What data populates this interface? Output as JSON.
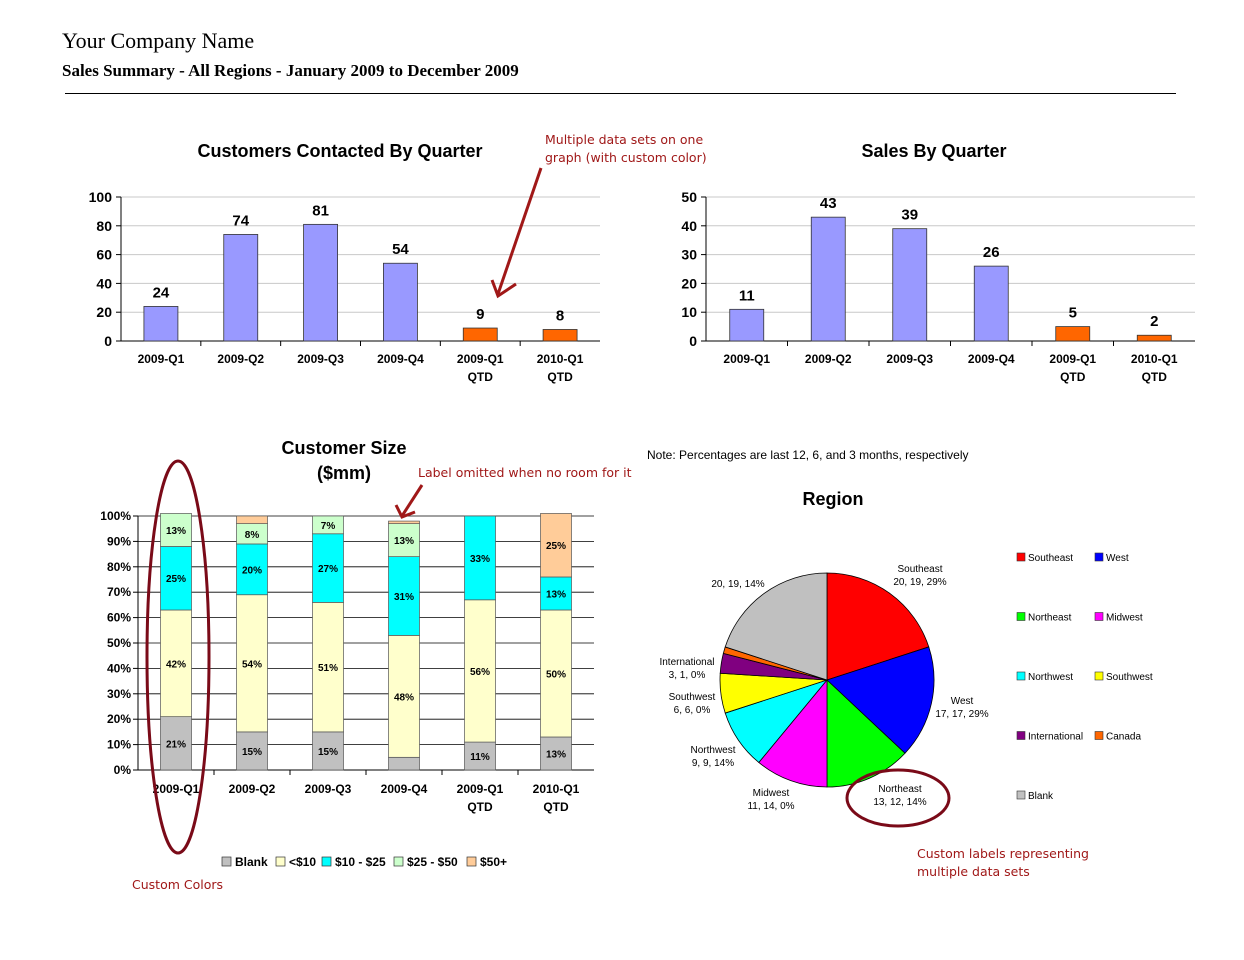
{
  "header": {
    "company": "Your Company Name",
    "subtitle": "Sales Summary - All Regions - January 2009 to December 2009"
  },
  "annotations": {
    "multi_line1": "Multiple data sets on one",
    "multi_line2": "graph (with custom color)",
    "label_omitted": "Label omitted when no room for it",
    "custom_colors": "Custom Colors",
    "custom_labels_line1": "Custom labels representing",
    "custom_labels_line2": "multiple data sets",
    "annotation_color": "#a01818"
  },
  "note": "Note: Percentages are last 12, 6, and 3 months, respectively",
  "chart_data": [
    {
      "type": "bar",
      "title": "Customers Contacted By Quarter",
      "categories": [
        [
          "2009-Q1"
        ],
        [
          "2009-Q2"
        ],
        [
          "2009-Q3"
        ],
        [
          "2009-Q4"
        ],
        [
          "2009-Q1",
          "QTD"
        ],
        [
          "2010-Q1",
          "QTD"
        ]
      ],
      "values": [
        24,
        74,
        81,
        54,
        9,
        8
      ],
      "colors": [
        "#9999ff",
        "#9999ff",
        "#9999ff",
        "#9999ff",
        "#ff6600",
        "#ff6600"
      ],
      "ylim": [
        0,
        100
      ],
      "yticks": [
        0,
        20,
        40,
        60,
        80,
        100
      ],
      "grid": true
    },
    {
      "type": "bar",
      "title": "Sales By Quarter",
      "categories": [
        [
          "2009-Q1"
        ],
        [
          "2009-Q2"
        ],
        [
          "2009-Q3"
        ],
        [
          "2009-Q4"
        ],
        [
          "2009-Q1",
          "QTD"
        ],
        [
          "2010-Q1",
          "QTD"
        ]
      ],
      "values": [
        11,
        43,
        39,
        26,
        5,
        2
      ],
      "colors": [
        "#9999ff",
        "#9999ff",
        "#9999ff",
        "#9999ff",
        "#ff6600",
        "#ff6600"
      ],
      "ylim": [
        0,
        50
      ],
      "yticks": [
        0,
        10,
        20,
        30,
        40,
        50
      ],
      "grid": true
    },
    {
      "type": "bar",
      "stacked": "percent",
      "title": [
        "Customer Size",
        "($mm)"
      ],
      "categories": [
        [
          "2009-Q1"
        ],
        [
          "2009-Q2"
        ],
        [
          "2009-Q3"
        ],
        [
          "2009-Q4"
        ],
        [
          "2009-Q1",
          "QTD"
        ],
        [
          "2010-Q1",
          "QTD"
        ]
      ],
      "yticks": [
        "0%",
        "10%",
        "20%",
        "30%",
        "40%",
        "50%",
        "60%",
        "70%",
        "80%",
        "90%",
        "100%"
      ],
      "legend_position": "bottom",
      "grid": true,
      "series": [
        {
          "name": "Blank",
          "color": "#c0c0c0",
          "values": [
            21,
            15,
            15,
            5,
            11,
            13
          ],
          "labels": [
            "21%",
            "15%",
            "15%",
            "",
            "11%",
            "13%"
          ]
        },
        {
          "name": "<$10",
          "color": "#ffffcc",
          "values": [
            42,
            54,
            51,
            48,
            56,
            50
          ],
          "labels": [
            "42%",
            "54%",
            "51%",
            "48%",
            "56%",
            "50%"
          ]
        },
        {
          "name": "$10 - $25",
          "color": "#00ffff",
          "values": [
            25,
            20,
            27,
            31,
            33,
            13
          ],
          "labels": [
            "25%",
            "20%",
            "27%",
            "31%",
            "33%",
            "13%"
          ]
        },
        {
          "name": "$25 - $50",
          "color": "#ccffcc",
          "values": [
            13,
            8,
            7,
            13,
            0,
            0
          ],
          "labels": [
            "13%",
            "8%",
            "7%",
            "13%",
            "",
            ""
          ]
        },
        {
          "name": "$50+",
          "color": "#ffcc99",
          "values": [
            0,
            3,
            0,
            1,
            0,
            25
          ],
          "labels": [
            "",
            "",
            "",
            "",
            "",
            "25%"
          ]
        }
      ]
    },
    {
      "type": "pie",
      "title": "Region",
      "legend_position": "right",
      "slices": [
        {
          "name": "Southeast",
          "value": 20,
          "color": "#ff0000",
          "label": [
            "Southeast",
            "20, 19, 29%"
          ]
        },
        {
          "name": "West",
          "value": 17,
          "color": "#0000ff",
          "label": [
            "West",
            "17, 17, 29%"
          ]
        },
        {
          "name": "Northeast",
          "value": 13,
          "color": "#00ff00",
          "label": [
            "Northeast",
            "13, 12, 14%"
          ]
        },
        {
          "name": "Midwest",
          "value": 11,
          "color": "#ff00ff",
          "label": [
            "Midwest",
            "11, 14, 0%"
          ]
        },
        {
          "name": "Northwest",
          "value": 9,
          "color": "#00ffff",
          "label": [
            "Northwest",
            "9, 9, 14%"
          ]
        },
        {
          "name": "Southwest",
          "value": 6,
          "color": "#ffff00",
          "label": [
            "Southwest",
            "6, 6, 0%"
          ]
        },
        {
          "name": "International",
          "value": 3,
          "color": "#800080",
          "label": [
            "International",
            "3, 1, 0%"
          ]
        },
        {
          "name": "Canada",
          "value": 1,
          "color": "#ff6600",
          "label": []
        },
        {
          "name": "Blank",
          "value": 20,
          "color": "#c0c0c0",
          "label": [
            "20, 19, 14%"
          ]
        }
      ]
    }
  ]
}
